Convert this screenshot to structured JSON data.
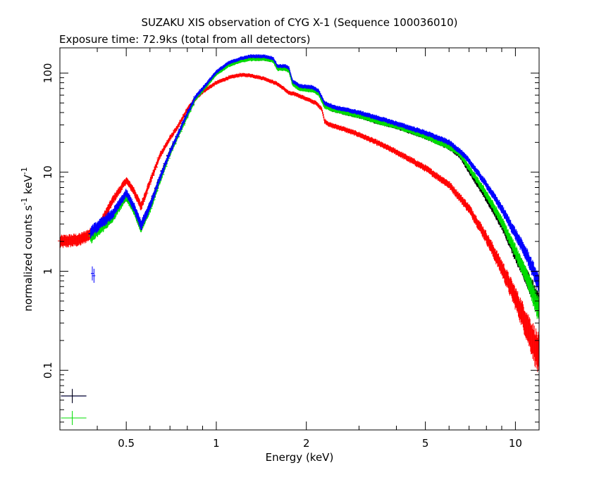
{
  "chart_data": {
    "type": "scatter",
    "title": "SUZAKU XIS observation of CYG X-1 (Sequence 100036010)",
    "subtitle": "Exposure time: 72.9ks (total from all detectors)",
    "xlabel": "Energy (keV)",
    "ylabel_base": "normalized counts s",
    "ylabel_exp1": "-1",
    "ylabel_mid": " keV",
    "ylabel_exp2": "-1",
    "x_scale": "log",
    "y_scale": "log",
    "xlim": [
      0.3,
      12
    ],
    "ylim": [
      0.025,
      180
    ],
    "x_ticks": [
      {
        "value": 0.5,
        "label": "0.5"
      },
      {
        "value": 1,
        "label": "1"
      },
      {
        "value": 2,
        "label": "2"
      },
      {
        "value": 5,
        "label": "5"
      },
      {
        "value": 10,
        "label": "10"
      }
    ],
    "y_ticks": [
      {
        "value": 0.1,
        "label": "0.1"
      },
      {
        "value": 1,
        "label": "1"
      },
      {
        "value": 10,
        "label": "10"
      },
      {
        "value": 100,
        "label": "100"
      }
    ],
    "grid": false,
    "legend": "none",
    "series": [
      {
        "color": "#ff0000",
        "points": [
          [
            0.3,
            2.0
          ],
          [
            0.35,
            2.1
          ],
          [
            0.4,
            2.6
          ],
          [
            0.45,
            5.2
          ],
          [
            0.5,
            8.3
          ],
          [
            0.53,
            6.5
          ],
          [
            0.56,
            4.5
          ],
          [
            0.6,
            8.0
          ],
          [
            0.65,
            15.0
          ],
          [
            0.7,
            22.0
          ],
          [
            0.75,
            30.0
          ],
          [
            0.8,
            43.0
          ],
          [
            0.85,
            55.0
          ],
          [
            0.9,
            65.0
          ],
          [
            1.0,
            80.0
          ],
          [
            1.1,
            90.0
          ],
          [
            1.2,
            96.0
          ],
          [
            1.3,
            95.0
          ],
          [
            1.45,
            88.0
          ],
          [
            1.6,
            78.0
          ],
          [
            1.7,
            68.0
          ],
          [
            1.75,
            63.0
          ],
          [
            1.85,
            61.0
          ],
          [
            2.0,
            55.0
          ],
          [
            2.15,
            50.0
          ],
          [
            2.25,
            44.0
          ],
          [
            2.3,
            33.0
          ],
          [
            2.4,
            30.0
          ],
          [
            2.6,
            28.0
          ],
          [
            3.0,
            24.0
          ],
          [
            3.5,
            19.5
          ],
          [
            4.0,
            16.0
          ],
          [
            5.0,
            11.0
          ],
          [
            6.0,
            7.5
          ],
          [
            7.0,
            4.3
          ],
          [
            8.0,
            2.2
          ],
          [
            9.0,
            1.1
          ],
          [
            10.0,
            0.55
          ],
          [
            11.0,
            0.28
          ],
          [
            12.0,
            0.15
          ]
        ]
      },
      {
        "color": "#000000",
        "points": [
          [
            0.38,
            2.3
          ],
          [
            0.45,
            3.6
          ],
          [
            0.5,
            5.8
          ],
          [
            0.53,
            4.3
          ],
          [
            0.56,
            2.8
          ],
          [
            0.6,
            4.5
          ],
          [
            0.65,
            9.0
          ],
          [
            0.7,
            16.0
          ],
          [
            0.8,
            38.0
          ],
          [
            0.85,
            55.0
          ],
          [
            0.9,
            68.0
          ],
          [
            1.0,
            100.0
          ],
          [
            1.1,
            122.0
          ],
          [
            1.2,
            133.0
          ],
          [
            1.3,
            140.0
          ],
          [
            1.45,
            140.0
          ],
          [
            1.55,
            134.0
          ],
          [
            1.6,
            112.0
          ],
          [
            1.7,
            111.0
          ],
          [
            1.75,
            106.0
          ],
          [
            1.8,
            78.0
          ],
          [
            1.9,
            70.0
          ],
          [
            2.1,
            68.0
          ],
          [
            2.2,
            63.0
          ],
          [
            2.3,
            47.0
          ],
          [
            2.5,
            42.0
          ],
          [
            3.0,
            37.0
          ],
          [
            3.5,
            32.0
          ],
          [
            4.0,
            29.0
          ],
          [
            5.0,
            23.0
          ],
          [
            6.0,
            18.0
          ],
          [
            6.5,
            15.0
          ],
          [
            7.0,
            10.5
          ],
          [
            8.0,
            5.5
          ],
          [
            9.0,
            3.0
          ],
          [
            10.0,
            1.5
          ],
          [
            11.0,
            0.85
          ],
          [
            12.0,
            0.45
          ]
        ]
      },
      {
        "color": "#00dd00",
        "points": [
          [
            0.38,
            2.2
          ],
          [
            0.45,
            3.5
          ],
          [
            0.5,
            5.7
          ],
          [
            0.53,
            4.2
          ],
          [
            0.56,
            2.8
          ],
          [
            0.6,
            4.3
          ],
          [
            0.65,
            8.5
          ],
          [
            0.7,
            15.5
          ],
          [
            0.8,
            37.0
          ],
          [
            0.85,
            55.0
          ],
          [
            0.9,
            67.0
          ],
          [
            1.0,
            98.0
          ],
          [
            1.1,
            120.0
          ],
          [
            1.2,
            132.0
          ],
          [
            1.3,
            138.0
          ],
          [
            1.45,
            139.0
          ],
          [
            1.55,
            133.0
          ],
          [
            1.6,
            110.0
          ],
          [
            1.7,
            110.0
          ],
          [
            1.75,
            105.0
          ],
          [
            1.8,
            77.0
          ],
          [
            1.9,
            69.0
          ],
          [
            2.1,
            67.0
          ],
          [
            2.2,
            62.0
          ],
          [
            2.3,
            46.0
          ],
          [
            2.5,
            42.0
          ],
          [
            3.0,
            37.0
          ],
          [
            3.5,
            32.0
          ],
          [
            4.0,
            29.0
          ],
          [
            5.0,
            23.0
          ],
          [
            6.0,
            18.0
          ],
          [
            6.5,
            15.5
          ],
          [
            7.0,
            11.0
          ],
          [
            8.0,
            6.0
          ],
          [
            9.0,
            3.2
          ],
          [
            10.0,
            1.6
          ],
          [
            11.0,
            0.85
          ],
          [
            12.0,
            0.4
          ]
        ]
      },
      {
        "color": "#0000ff",
        "points": [
          [
            0.38,
            2.5
          ],
          [
            0.45,
            3.8
          ],
          [
            0.5,
            6.2
          ],
          [
            0.53,
            4.5
          ],
          [
            0.56,
            2.9
          ],
          [
            0.6,
            4.6
          ],
          [
            0.65,
            9.0
          ],
          [
            0.7,
            16.0
          ],
          [
            0.8,
            39.0
          ],
          [
            0.85,
            57.0
          ],
          [
            0.9,
            70.0
          ],
          [
            1.0,
            103.0
          ],
          [
            1.1,
            127.0
          ],
          [
            1.2,
            140.0
          ],
          [
            1.3,
            148.0
          ],
          [
            1.45,
            148.0
          ],
          [
            1.55,
            141.0
          ],
          [
            1.6,
            118.0
          ],
          [
            1.7,
            118.0
          ],
          [
            1.75,
            112.0
          ],
          [
            1.8,
            83.0
          ],
          [
            1.9,
            74.0
          ],
          [
            2.1,
            72.0
          ],
          [
            2.2,
            66.0
          ],
          [
            2.3,
            50.0
          ],
          [
            2.5,
            45.0
          ],
          [
            3.0,
            40.0
          ],
          [
            3.5,
            35.0
          ],
          [
            4.0,
            31.0
          ],
          [
            5.0,
            25.0
          ],
          [
            6.0,
            20.0
          ],
          [
            6.5,
            16.5
          ],
          [
            7.0,
            13.0
          ],
          [
            8.0,
            7.5
          ],
          [
            9.0,
            4.3
          ],
          [
            10.0,
            2.4
          ],
          [
            11.0,
            1.4
          ],
          [
            12.0,
            0.75
          ]
        ]
      }
    ],
    "outlier_points": [
      {
        "series": 3,
        "points": [
          [
            0.385,
            0.95
          ],
          [
            0.39,
            0.9
          ]
        ]
      }
    ],
    "corner_markers": [
      {
        "color": "#0000ff",
        "x": 0.33,
        "y": 0.055
      },
      {
        "color": "#000000",
        "x": 0.33,
        "y": 0.055
      },
      {
        "color": "#00dd00",
        "x": 0.33,
        "y": 0.033
      }
    ]
  }
}
